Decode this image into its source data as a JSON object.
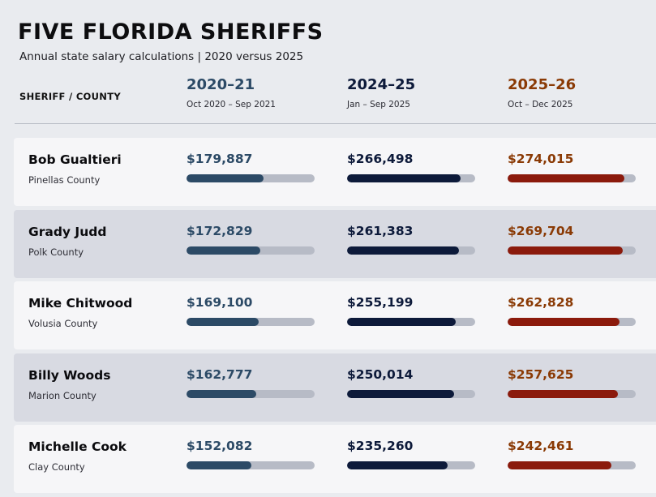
{
  "header": {
    "title": "FIVE FLORIDA SHERIFFS",
    "subtitle": "Annual state salary calculations  |  2020 versus 2025",
    "column_label": "SHERIFF / COUNTY"
  },
  "colors": {
    "p2020": "#2c4a66",
    "p2024": "#0d1a3a",
    "p2025": "#8b1a0c",
    "p2025_text": "#8a3a05"
  },
  "chart_data": {
    "type": "bar",
    "xlim": [
      0,
      300000
    ],
    "periods": [
      {
        "key": "p2020",
        "label": "2020–21",
        "dates": "Oct 2020 – Sep 2021"
      },
      {
        "key": "p2024",
        "label": "2024–25",
        "dates": "Jan – Sep 2025"
      },
      {
        "key": "p2025",
        "label": "2025–26",
        "dates": "Oct – Dec 2025"
      }
    ],
    "rows": [
      {
        "name": "Bob Gualtieri",
        "county": "Pinellas County",
        "values": [
          179887,
          266498,
          274015
        ],
        "labels": [
          "$179,887",
          "$266,498",
          "$274,015"
        ]
      },
      {
        "name": "Grady Judd",
        "county": "Polk County",
        "values": [
          172829,
          261383,
          269704
        ],
        "labels": [
          "$172,829",
          "$261,383",
          "$269,704"
        ]
      },
      {
        "name": "Mike Chitwood",
        "county": "Volusia County",
        "values": [
          169100,
          255199,
          262828
        ],
        "labels": [
          "$169,100",
          "$255,199",
          "$262,828"
        ]
      },
      {
        "name": "Billy Woods",
        "county": "Marion County",
        "values": [
          162777,
          250014,
          257625
        ],
        "labels": [
          "$162,777",
          "$250,014",
          "$257,625"
        ]
      },
      {
        "name": "Michelle Cook",
        "county": "Clay County",
        "values": [
          152082,
          235260,
          242461
        ],
        "labels": [
          "$152,082",
          "$235,260",
          "$242,461"
        ]
      }
    ]
  }
}
